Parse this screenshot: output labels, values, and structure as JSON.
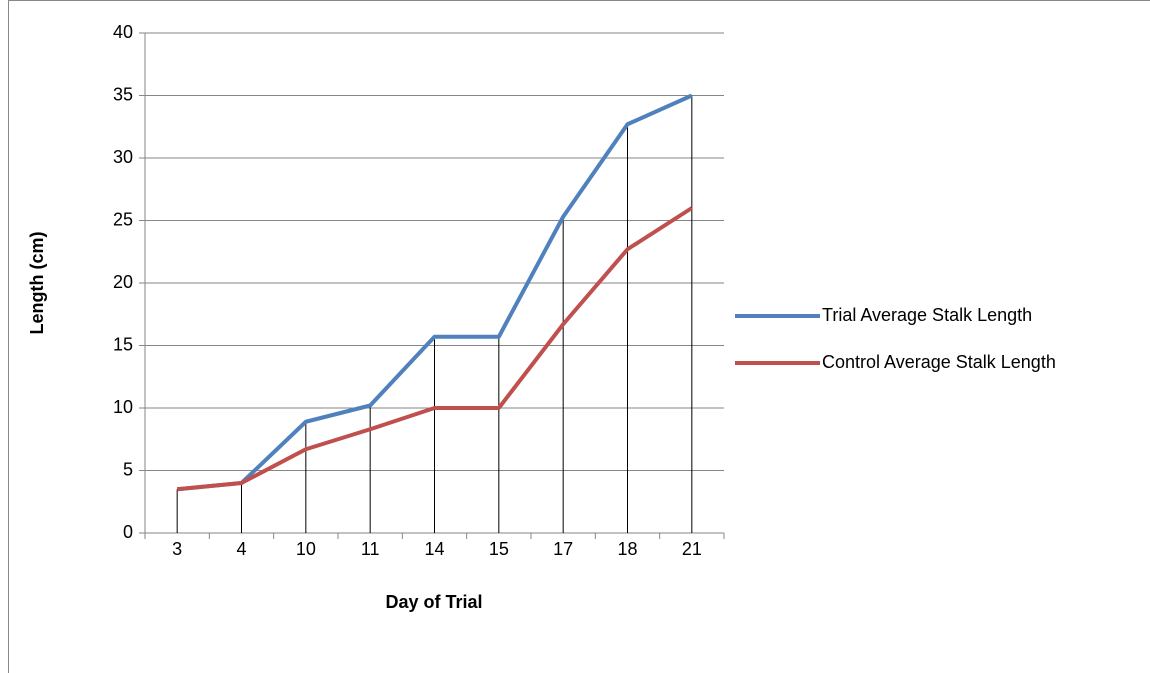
{
  "chart_data": {
    "type": "line",
    "categories": [
      "3",
      "4",
      "10",
      "11",
      "14",
      "15",
      "17",
      "18",
      "21"
    ],
    "series": [
      {
        "name": "Trial Average Stalk Length",
        "color": "#4f81bd",
        "values": [
          3.5,
          4,
          8.9,
          10.2,
          15.7,
          15.7,
          25.3,
          32.7,
          35
        ]
      },
      {
        "name": "Control Average Stalk Length",
        "color": "#c0504d",
        "values": [
          3.5,
          4,
          6.7,
          8.3,
          10,
          10,
          16.7,
          22.7,
          26
        ]
      }
    ],
    "xlabel": "Day of Trial",
    "ylabel": "Length (cm)",
    "ylim": [
      0,
      40
    ],
    "yticks": [
      0,
      5,
      10,
      15,
      20,
      25,
      30,
      35,
      40
    ],
    "grid": true,
    "drop_lines": true,
    "legend": "right"
  }
}
